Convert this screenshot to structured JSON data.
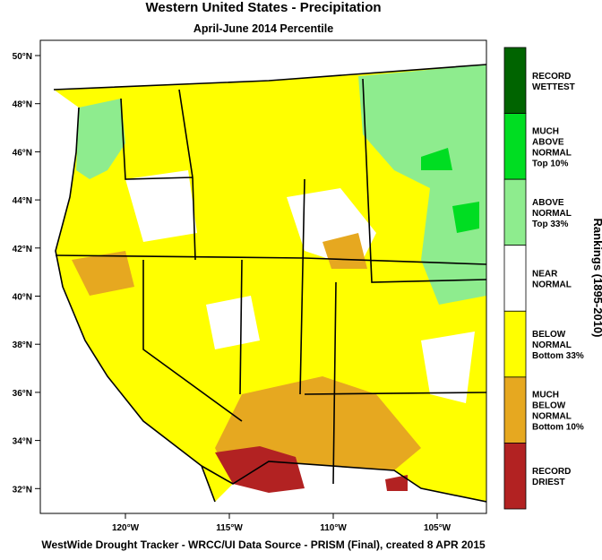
{
  "header": {
    "title": "Western United States - Precipitation",
    "subtitle": "April-June 2014 Percentile"
  },
  "map": {
    "lat_labels": [
      "50°N",
      "48°N",
      "46°N",
      "44°N",
      "42°N",
      "40°N",
      "38°N",
      "36°N",
      "34°N",
      "32°N"
    ],
    "lon_labels": [
      "120°W",
      "115°W",
      "110°W",
      "105°W"
    ]
  },
  "legend": {
    "title": "Rankings (1895-2010)",
    "entries": [
      {
        "lines": [
          "RECORD",
          "WETTEST"
        ],
        "color": "#006400"
      },
      {
        "lines": [
          "MUCH",
          "ABOVE",
          "NORMAL",
          "Top 10%"
        ],
        "color": "#00dd22"
      },
      {
        "lines": [
          "ABOVE",
          "NORMAL",
          "Top 33%"
        ],
        "color": "#8eec8e"
      },
      {
        "lines": [
          "NEAR",
          "NORMAL"
        ],
        "color": "#ffffff"
      },
      {
        "lines": [
          "BELOW",
          "NORMAL",
          "Bottom 33%"
        ],
        "color": "#ffff00"
      },
      {
        "lines": [
          "MUCH",
          "BELOW",
          "NORMAL",
          "Bottom 10%"
        ],
        "color": "#e6a820"
      },
      {
        "lines": [
          "RECORD",
          "DRIEST"
        ],
        "color": "#b22222"
      }
    ]
  },
  "footer": "WestWide Drought Tracker - WRCC/UI  Data Source - PRISM (Final), created  8 APR 2015"
}
